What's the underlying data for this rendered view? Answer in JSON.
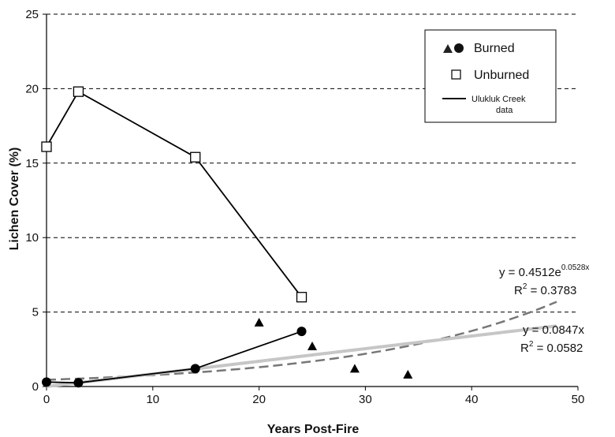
{
  "chart_data": {
    "type": "scatter",
    "xlabel": "Years Post-Fire",
    "ylabel": "Lichen Cover (%)",
    "xlim": [
      0,
      50
    ],
    "ylim": [
      0,
      25
    ],
    "xticks": [
      0,
      10,
      20,
      30,
      40,
      50
    ],
    "yticks": [
      0,
      5,
      10,
      15,
      20,
      25
    ],
    "grid": "horizontal dashed",
    "legend": {
      "position": "top-right",
      "entries": [
        {
          "label": "Burned",
          "markers": [
            "triangle",
            "circle"
          ]
        },
        {
          "label": "Unburned",
          "markers": [
            "open-square"
          ]
        },
        {
          "label_line1": "Ulukluk Creek",
          "label_line2": "data",
          "markers": [
            "line"
          ]
        }
      ]
    },
    "series": [
      {
        "name": "Unburned",
        "marker": "open-square",
        "connected": true,
        "points": [
          {
            "x": 0,
            "y": 16.1
          },
          {
            "x": 3,
            "y": 19.8
          },
          {
            "x": 14,
            "y": 15.4
          },
          {
            "x": 24,
            "y": 6.0
          }
        ]
      },
      {
        "name": "Burned",
        "marker": "circle",
        "connected": true,
        "points": [
          {
            "x": 0,
            "y": 0.3
          },
          {
            "x": 3,
            "y": 0.25
          },
          {
            "x": 14,
            "y": 1.2
          },
          {
            "x": 24,
            "y": 3.7
          }
        ]
      },
      {
        "name": "Burned",
        "marker": "triangle",
        "connected": false,
        "points": [
          {
            "x": 20,
            "y": 4.3
          },
          {
            "x": 25,
            "y": 2.7
          },
          {
            "x": 29,
            "y": 1.2
          },
          {
            "x": 34,
            "y": 0.8
          }
        ]
      }
    ],
    "trendlines": [
      {
        "kind": "exponential",
        "a": 0.4512,
        "b": 0.0528,
        "x_range": [
          0,
          48
        ],
        "style": "dashed-dark",
        "eq_base": "y = 0.4512e",
        "eq_exp": "0.0528x",
        "r2_prefix": "R",
        "r2_sup": "2",
        "r2_value": " = 0.3783"
      },
      {
        "kind": "linear",
        "slope": 0.0847,
        "x_range": [
          0,
          48
        ],
        "style": "light-gray",
        "eq_base": "y = 0.0847x",
        "eq_exp": "",
        "r2_prefix": "R",
        "r2_sup": "2",
        "r2_value": " = 0.0582"
      }
    ]
  }
}
